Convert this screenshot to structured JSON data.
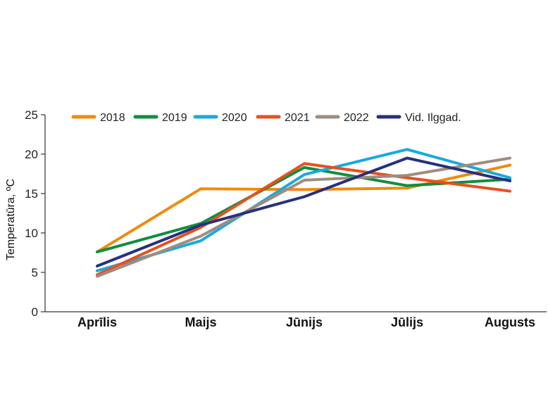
{
  "chart_data": {
    "type": "line",
    "title": "",
    "xlabel": "",
    "ylabel": "Temperatūra, ºC",
    "categories": [
      "Aprīlis",
      "Maijs",
      "Jūnijs",
      "Jūlijs",
      "Augusts"
    ],
    "ylim": [
      0,
      25
    ],
    "yticks": [
      0,
      5,
      10,
      15,
      20,
      25
    ],
    "grid": false,
    "legend_position": "top",
    "series": [
      {
        "name": "2018",
        "color": "#f08a0c",
        "values": [
          7.6,
          15.6,
          15.5,
          15.7,
          18.6
        ]
      },
      {
        "name": "2019",
        "color": "#0e8f3e",
        "values": [
          7.6,
          11.2,
          18.3,
          16.0,
          16.8
        ]
      },
      {
        "name": "2020",
        "color": "#1aa9e0",
        "values": [
          5.2,
          9.0,
          17.4,
          20.6,
          17.0
        ]
      },
      {
        "name": "2021",
        "color": "#e8501e",
        "values": [
          4.7,
          10.7,
          18.8,
          17.0,
          15.3
        ]
      },
      {
        "name": "2022",
        "color": "#a08c7e",
        "values": [
          4.5,
          9.6,
          16.7,
          17.3,
          19.5
        ]
      },
      {
        "name": "Vid. Ilggad.",
        "color": "#27307e",
        "values": [
          5.8,
          11.0,
          14.6,
          19.5,
          16.6
        ]
      }
    ]
  }
}
